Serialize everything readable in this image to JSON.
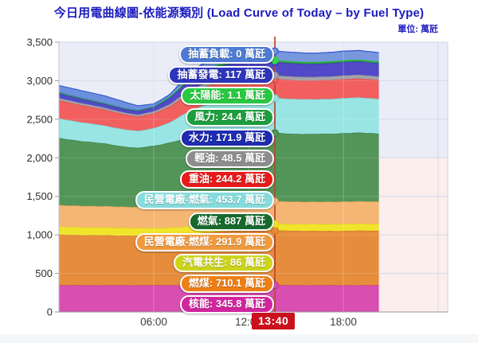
{
  "header": {
    "title": "今日用電曲線圖-依能源類別 (Load Curve of Today – by Fuel Type)",
    "unit_label": "單位: 萬瓩"
  },
  "theme": {
    "title_color": "#1b1bc0",
    "badge_bg": "#c9101c",
    "plot_bg_upper": "#eaedf8",
    "plot_bg_lower": "#fbeeec",
    "gridline": "#d5d8e6",
    "axis_line": "#9a9aa2",
    "tick_text": "#333333",
    "current_line": "#c0432f"
  },
  "chart_data": {
    "type": "area",
    "subtype": "stacked-area-load-curve",
    "title": "今日用電曲線圖-依能源類別 (Load Curve of Today – by Fuel Type)",
    "unit": "萬瓩",
    "legend_position": "floating-labels-left-of-current-time-line",
    "grid": "on",
    "x": {
      "domain_hours": [
        0,
        24.6
      ],
      "data_end_hour": 20.25,
      "ticks": [
        {
          "hour": 6,
          "label": "06:00"
        },
        {
          "hour": 12,
          "label": "12:00"
        },
        {
          "hour": 18,
          "label": "18:00"
        }
      ]
    },
    "y": {
      "min": 0,
      "max": 3500,
      "tick_step": 500,
      "tick_labels": [
        "0",
        "500",
        "1,000",
        "1,500",
        "2,000",
        "2,500",
        "3,000",
        "3,500"
      ],
      "split_value": 2000
    },
    "current_time": {
      "hour": 13.667,
      "label": "13:40"
    },
    "sample_hours": [
      0,
      1,
      2,
      3,
      4,
      5,
      6,
      7,
      8,
      9,
      10,
      11,
      12,
      13,
      13.67,
      14,
      15,
      16,
      17,
      18,
      19,
      20,
      20.25
    ],
    "series": [
      {
        "key": "nuclear",
        "name": "核能",
        "value_label": "345.8",
        "color": "#d84fb1",
        "label_bg": "#d1259e",
        "stroke": "#b92f93",
        "samples": [
          345.8,
          345.8,
          345.8,
          345.8,
          345.8,
          345.8,
          345.8,
          345.8,
          345.8,
          345.8,
          345.8,
          345.8,
          345.8,
          345.8,
          345.8,
          345.8,
          345.8,
          345.8,
          345.8,
          345.8,
          345.8,
          345.8,
          345.8
        ]
      },
      {
        "key": "coal",
        "name": "燃煤",
        "value_label": "710.1",
        "color": "#e68d3d",
        "label_bg": "#ee7f16",
        "stroke": "#cf7427",
        "samples": [
          655,
          652,
          650,
          648,
          645,
          643,
          642,
          650,
          665,
          680,
          695,
          705,
          708,
          710,
          710.1,
          710,
          708,
          706,
          705,
          707,
          709,
          708,
          707
        ]
      },
      {
        "key": "cogen",
        "name": "汽電共生",
        "value_label": "86",
        "color": "#f0e52a",
        "label_bg": "#ccd41a",
        "stroke": "#ddd116",
        "samples": [
          105,
          104,
          103,
          102,
          101,
          100,
          100,
          98,
          95,
          92,
          90,
          88,
          87,
          86,
          86,
          86,
          87,
          88,
          88,
          89,
          89,
          88,
          88
        ]
      },
      {
        "key": "ipp_coal",
        "name": "民營電廠-燃煤",
        "value_label": "291.9",
        "color": "#f5b674",
        "label_bg": "#f19a3d",
        "stroke": "#e39c50",
        "samples": [
          278,
          277,
          276,
          275,
          274,
          273,
          272,
          275,
          280,
          284,
          287,
          289,
          291,
          292,
          291.9,
          292,
          291,
          290,
          290,
          291,
          291,
          290,
          290
        ]
      },
      {
        "key": "gas",
        "name": "燃氣",
        "value_label": "887",
        "color": "#539558",
        "label_bg": "#166a2c",
        "stroke": "#3a7d45",
        "samples": [
          870,
          850,
          830,
          810,
          785,
          765,
          795,
          830,
          860,
          875,
          885,
          890,
          885,
          887,
          887,
          885,
          880,
          878,
          882,
          888,
          890,
          885,
          884
        ]
      },
      {
        "key": "ipp_gas",
        "name": "民營電廠-燃氣",
        "value_label": "453.7",
        "color": "#99e5e4",
        "label_bg": "#85dcdc",
        "stroke": "#74cfcf",
        "samples": [
          255,
          248,
          240,
          232,
          225,
          220,
          230,
          260,
          330,
          390,
          430,
          448,
          452,
          454,
          453.7,
          454,
          452,
          450,
          452,
          455,
          456,
          452,
          451
        ]
      },
      {
        "key": "heavy_oil",
        "name": "重油",
        "value_label": "244.2",
        "color": "#f25f5f",
        "label_bg": "#e81a1a",
        "stroke": "#de4343",
        "samples": [
          235,
          225,
          215,
          205,
          195,
          185,
          190,
          205,
          225,
          235,
          240,
          243,
          244,
          244,
          244.2,
          244,
          243,
          242,
          243,
          245,
          246,
          244,
          244
        ]
      },
      {
        "key": "light_oil",
        "name": "輕油",
        "value_label": "48.5",
        "color": "#a2a2aa",
        "label_bg": "#8d8d8d",
        "stroke": "#8b8b94",
        "samples": [
          30,
          29,
          28,
          26,
          25,
          26,
          28,
          33,
          40,
          44,
          46,
          47,
          48,
          48.5,
          48.5,
          48,
          48,
          48,
          48.5,
          49,
          49,
          48,
          48
        ]
      },
      {
        "key": "hydro",
        "name": "水力",
        "value_label": "171.9",
        "color": "#5149c7",
        "label_bg": "#1e2cb0",
        "stroke": "#3d36b5",
        "samples": [
          60,
          55,
          50,
          47,
          45,
          46,
          50,
          80,
          120,
          150,
          165,
          170,
          172,
          172,
          171.9,
          172,
          170,
          168,
          170,
          172,
          173,
          170,
          170
        ]
      },
      {
        "key": "wind",
        "name": "風力",
        "value_label": "24.4",
        "color": "#2ca23f",
        "label_bg": "#1c9e3c",
        "stroke": "#1f9336",
        "samples": [
          18,
          17,
          16,
          16,
          15,
          15,
          16,
          17,
          20,
          21,
          22,
          23,
          24,
          24.4,
          24.4,
          24,
          25,
          25,
          25,
          25,
          24,
          24,
          24
        ]
      },
      {
        "key": "solar",
        "name": "太陽能",
        "value_label": "1.1",
        "color": "#3bd254",
        "label_bg": "#28c840",
        "stroke": "#2bd14a",
        "samples": [
          0,
          0,
          0,
          0,
          0,
          0,
          0.2,
          0.5,
          0.8,
          1,
          1,
          1.1,
          1.1,
          1.1,
          1.1,
          1.1,
          1,
          1,
          0.8,
          0.5,
          0.2,
          0.1,
          0.1
        ]
      },
      {
        "key": "pumped_gen",
        "name": "抽蓄發電",
        "value_label": "117",
        "color": "#7897dd",
        "label_bg": "#2d35bc",
        "stroke": "#4b6fd0",
        "samples": [
          0,
          0,
          0,
          0,
          0,
          0,
          0,
          20,
          60,
          90,
          105,
          112,
          115,
          117,
          117,
          117,
          115,
          112,
          115,
          117,
          118,
          115,
          115
        ]
      },
      {
        "key": "pumped_load",
        "name": "抽蓄負載",
        "value_label": "0",
        "color": "#6b90dd",
        "label_bg": "#4d7bd3",
        "stroke": "#3c5cd0",
        "samples": [
          85,
          90,
          92,
          90,
          80,
          55,
          30,
          5,
          0,
          0,
          0,
          0,
          0,
          0,
          0,
          0,
          0,
          0,
          0,
          0,
          0,
          0,
          0
        ]
      }
    ]
  }
}
